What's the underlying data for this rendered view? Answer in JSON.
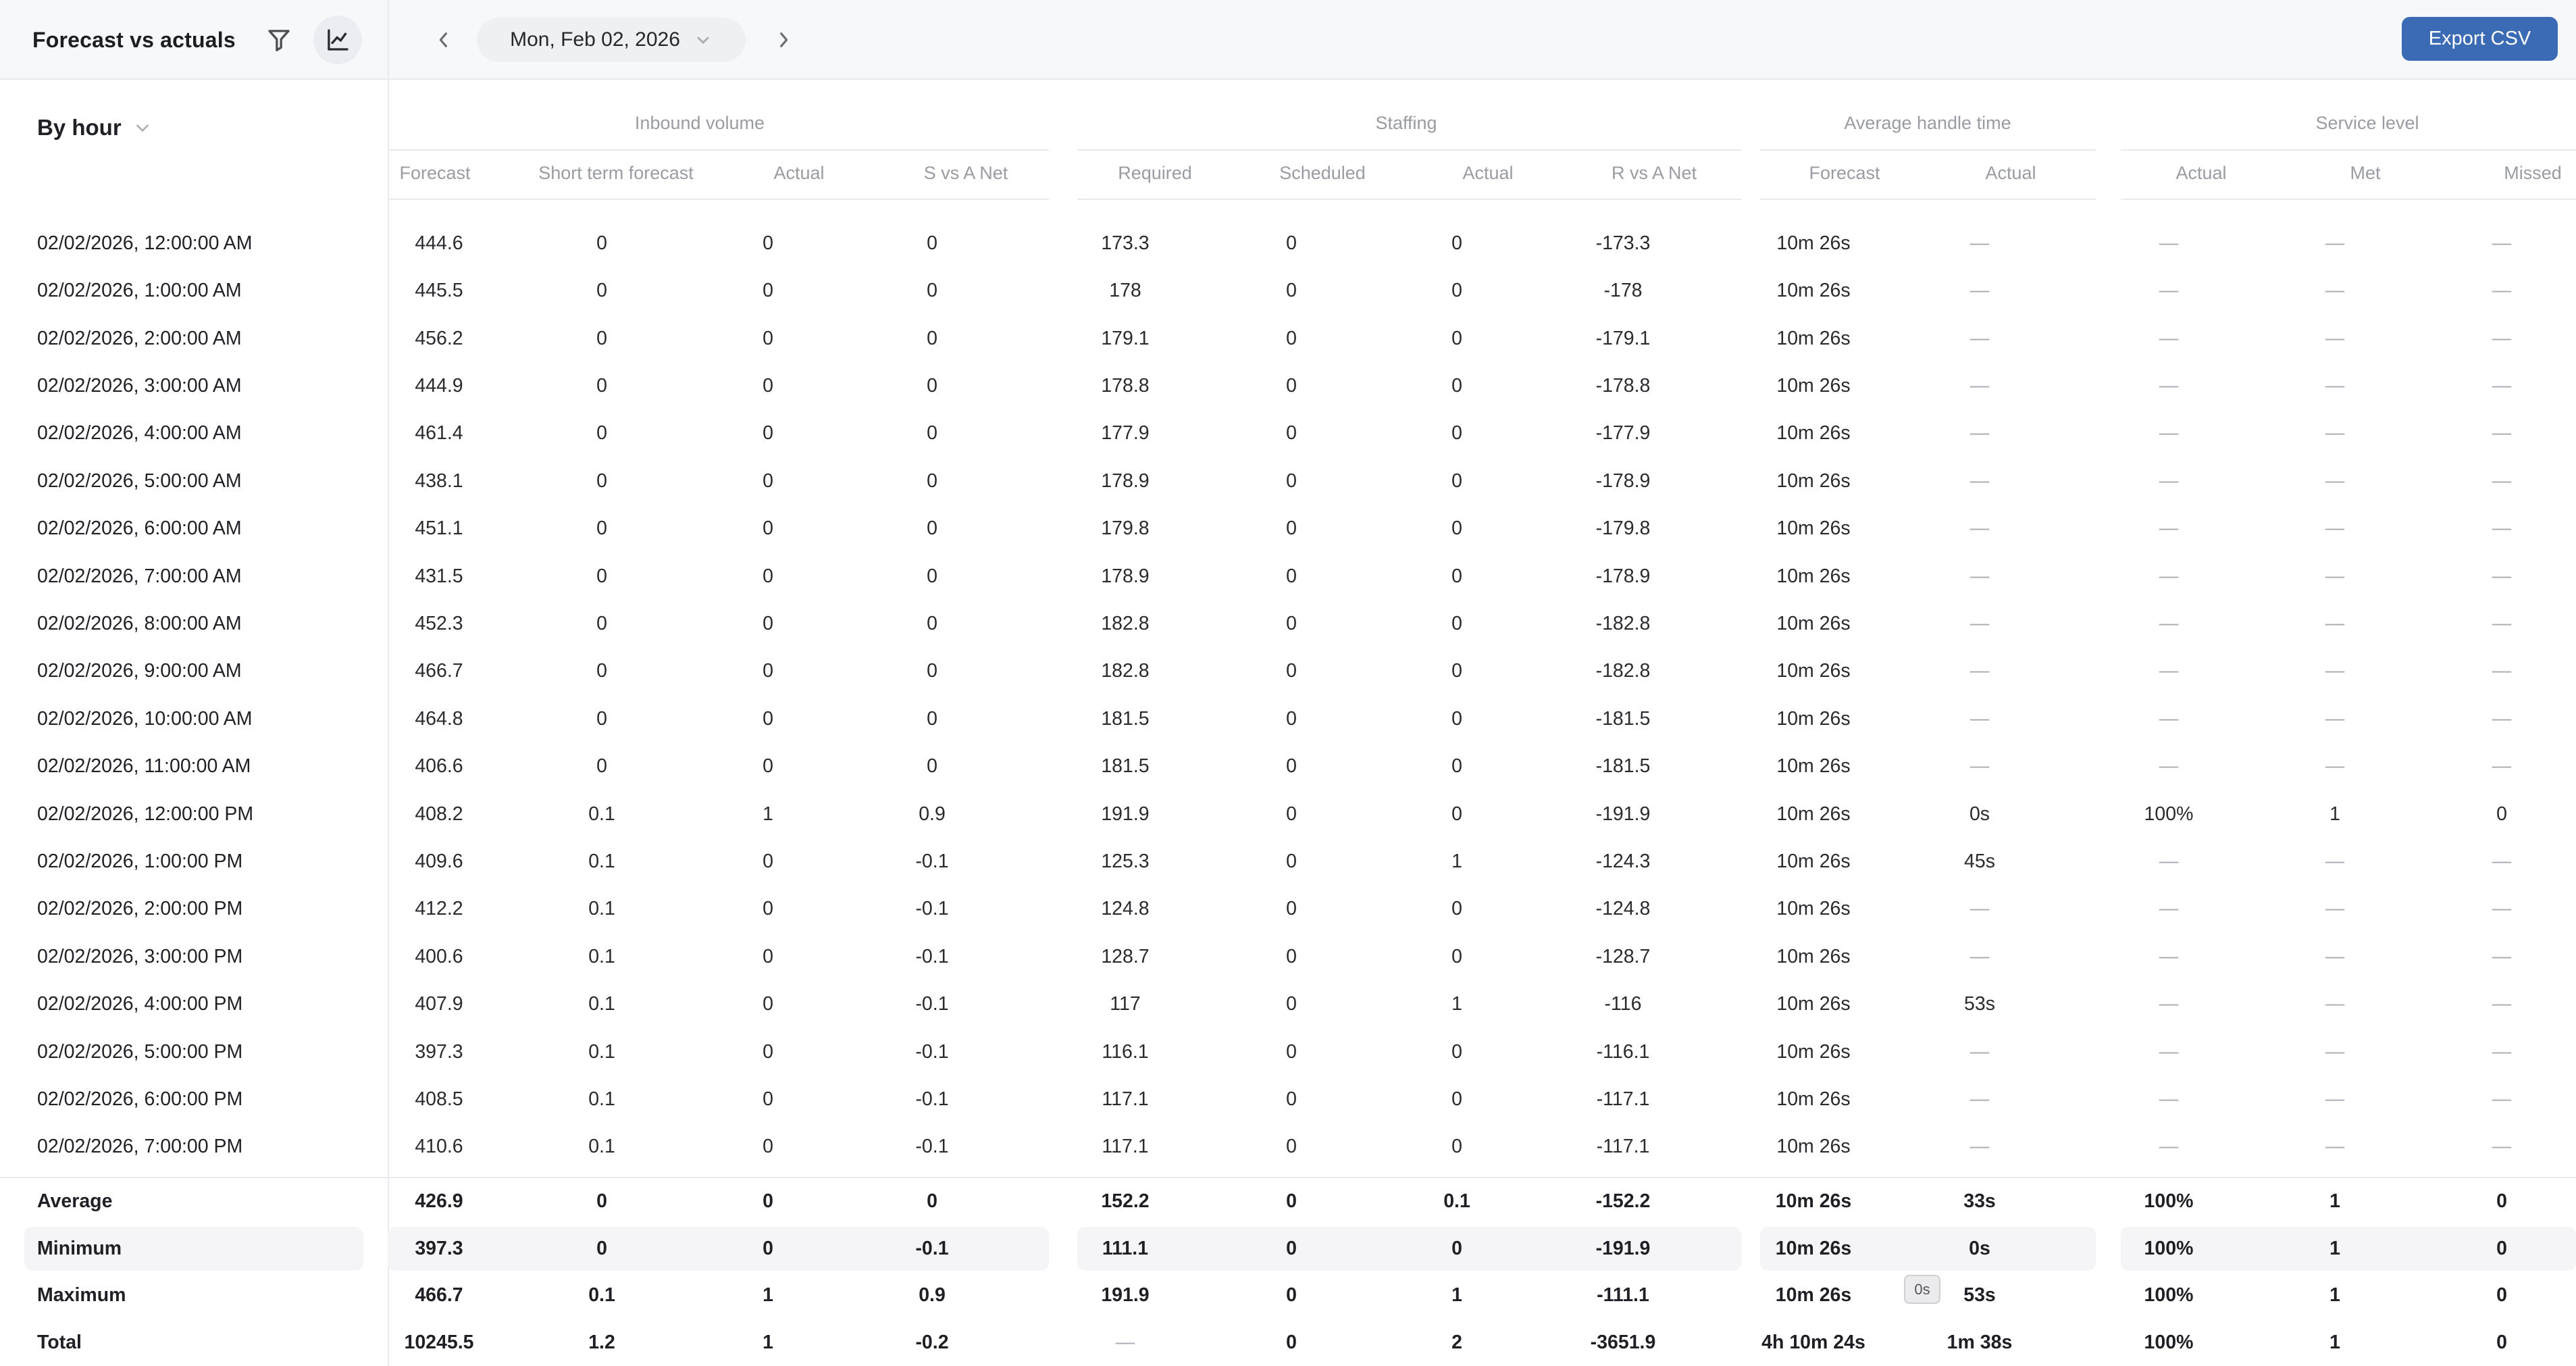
{
  "topbar": {
    "title": "Forecast vs actuals",
    "date_label": "Mon, Feb 02, 2026",
    "export_label": "Export CSV"
  },
  "controls": {
    "group_by_label": "By hour"
  },
  "icons": {
    "filter": "funnel-icon",
    "chart_toggle": "line-chart-icon",
    "prev": "chevron-left-icon",
    "next": "chevron-right-icon",
    "date_caret": "chevron-down-icon",
    "group_by_caret": "chevron-down-icon"
  },
  "colors": {
    "accent_blue": "#3a6bb4",
    "topbar_bg": "#f7f8fa",
    "border": "#e9eaef",
    "muted_header": "#9a9ca3",
    "row_highlight": "#f5f5f7",
    "dash": "#a9abb1"
  },
  "table": {
    "groups": [
      {
        "label": "Inbound volume",
        "sub": [
          "Forecast",
          "Short term forecast",
          "Actual",
          "S vs A Net"
        ]
      },
      {
        "label": "Staffing",
        "sub": [
          "Required",
          "Scheduled",
          "Actual",
          "R vs A Net"
        ]
      },
      {
        "label": "Average handle time",
        "sub": [
          "Forecast",
          "Actual"
        ]
      },
      {
        "label": "Service level",
        "sub": [
          "Actual",
          "Met",
          "Missed"
        ]
      }
    ],
    "rows": [
      {
        "time": "02/02/2026, 12:00:00 AM",
        "values": [
          "444.6",
          "0",
          "0",
          "0",
          "173.3",
          "0",
          "0",
          "-173.3",
          "10m 26s",
          "—",
          "—",
          "—",
          "—"
        ]
      },
      {
        "time": "02/02/2026, 1:00:00 AM",
        "values": [
          "445.5",
          "0",
          "0",
          "0",
          "178",
          "0",
          "0",
          "-178",
          "10m 26s",
          "—",
          "—",
          "—",
          "—"
        ]
      },
      {
        "time": "02/02/2026, 2:00:00 AM",
        "values": [
          "456.2",
          "0",
          "0",
          "0",
          "179.1",
          "0",
          "0",
          "-179.1",
          "10m 26s",
          "—",
          "—",
          "—",
          "—"
        ]
      },
      {
        "time": "02/02/2026, 3:00:00 AM",
        "values": [
          "444.9",
          "0",
          "0",
          "0",
          "178.8",
          "0",
          "0",
          "-178.8",
          "10m 26s",
          "—",
          "—",
          "—",
          "—"
        ]
      },
      {
        "time": "02/02/2026, 4:00:00 AM",
        "values": [
          "461.4",
          "0",
          "0",
          "0",
          "177.9",
          "0",
          "0",
          "-177.9",
          "10m 26s",
          "—",
          "—",
          "—",
          "—"
        ]
      },
      {
        "time": "02/02/2026, 5:00:00 AM",
        "values": [
          "438.1",
          "0",
          "0",
          "0",
          "178.9",
          "0",
          "0",
          "-178.9",
          "10m 26s",
          "—",
          "—",
          "—",
          "—"
        ]
      },
      {
        "time": "02/02/2026, 6:00:00 AM",
        "values": [
          "451.1",
          "0",
          "0",
          "0",
          "179.8",
          "0",
          "0",
          "-179.8",
          "10m 26s",
          "—",
          "—",
          "—",
          "—"
        ]
      },
      {
        "time": "02/02/2026, 7:00:00 AM",
        "values": [
          "431.5",
          "0",
          "0",
          "0",
          "178.9",
          "0",
          "0",
          "-178.9",
          "10m 26s",
          "—",
          "—",
          "—",
          "—"
        ]
      },
      {
        "time": "02/02/2026, 8:00:00 AM",
        "values": [
          "452.3",
          "0",
          "0",
          "0",
          "182.8",
          "0",
          "0",
          "-182.8",
          "10m 26s",
          "—",
          "—",
          "—",
          "—"
        ]
      },
      {
        "time": "02/02/2026, 9:00:00 AM",
        "values": [
          "466.7",
          "0",
          "0",
          "0",
          "182.8",
          "0",
          "0",
          "-182.8",
          "10m 26s",
          "—",
          "—",
          "—",
          "—"
        ]
      },
      {
        "time": "02/02/2026, 10:00:00 AM",
        "values": [
          "464.8",
          "0",
          "0",
          "0",
          "181.5",
          "0",
          "0",
          "-181.5",
          "10m 26s",
          "—",
          "—",
          "—",
          "—"
        ]
      },
      {
        "time": "02/02/2026, 11:00:00 AM",
        "values": [
          "406.6",
          "0",
          "0",
          "0",
          "181.5",
          "0",
          "0",
          "-181.5",
          "10m 26s",
          "—",
          "—",
          "—",
          "—"
        ]
      },
      {
        "time": "02/02/2026, 12:00:00 PM",
        "values": [
          "408.2",
          "0.1",
          "1",
          "0.9",
          "191.9",
          "0",
          "0",
          "-191.9",
          "10m 26s",
          "0s",
          "100%",
          "1",
          "0"
        ]
      },
      {
        "time": "02/02/2026, 1:00:00 PM",
        "values": [
          "409.6",
          "0.1",
          "0",
          "-0.1",
          "125.3",
          "0",
          "1",
          "-124.3",
          "10m 26s",
          "45s",
          "—",
          "—",
          "—"
        ]
      },
      {
        "time": "02/02/2026, 2:00:00 PM",
        "values": [
          "412.2",
          "0.1",
          "0",
          "-0.1",
          "124.8",
          "0",
          "0",
          "-124.8",
          "10m 26s",
          "—",
          "—",
          "—",
          "—"
        ]
      },
      {
        "time": "02/02/2026, 3:00:00 PM",
        "values": [
          "400.6",
          "0.1",
          "0",
          "-0.1",
          "128.7",
          "0",
          "0",
          "-128.7",
          "10m 26s",
          "—",
          "—",
          "—",
          "—"
        ]
      },
      {
        "time": "02/02/2026, 4:00:00 PM",
        "values": [
          "407.9",
          "0.1",
          "0",
          "-0.1",
          "117",
          "0",
          "1",
          "-116",
          "10m 26s",
          "53s",
          "—",
          "—",
          "—"
        ]
      },
      {
        "time": "02/02/2026, 5:00:00 PM",
        "values": [
          "397.3",
          "0.1",
          "0",
          "-0.1",
          "116.1",
          "0",
          "0",
          "-116.1",
          "10m 26s",
          "—",
          "—",
          "—",
          "—"
        ]
      },
      {
        "time": "02/02/2026, 6:00:00 PM",
        "values": [
          "408.5",
          "0.1",
          "0",
          "-0.1",
          "117.1",
          "0",
          "0",
          "-117.1",
          "10m 26s",
          "—",
          "—",
          "—",
          "—"
        ]
      },
      {
        "time": "02/02/2026, 7:00:00 PM",
        "values": [
          "410.6",
          "0.1",
          "0",
          "-0.1",
          "117.1",
          "0",
          "0",
          "-117.1",
          "10m 26s",
          "—",
          "—",
          "—",
          "—"
        ]
      }
    ],
    "summary": [
      {
        "label": "Average",
        "highlight": false,
        "values": [
          "426.9",
          "0",
          "0",
          "0",
          "152.2",
          "0",
          "0.1",
          "-152.2",
          "10m 26s",
          "33s",
          "100%",
          "1",
          "0"
        ]
      },
      {
        "label": "Minimum",
        "highlight": true,
        "values": [
          "397.3",
          "0",
          "0",
          "-0.1",
          "111.1",
          "0",
          "0",
          "-191.9",
          "10m 26s",
          "0s",
          "100%",
          "1",
          "0"
        ]
      },
      {
        "label": "Maximum",
        "highlight": false,
        "values": [
          "466.7",
          "0.1",
          "1",
          "0.9",
          "191.9",
          "0",
          "1",
          "-111.1",
          "10m 26s",
          "53s",
          "100%",
          "1",
          "0"
        ]
      },
      {
        "label": "Total",
        "highlight": false,
        "values": [
          "10245.5",
          "1.2",
          "1",
          "-0.2",
          "—",
          "0",
          "2",
          "-3651.9",
          "4h 10m 24s",
          "1m 38s",
          "100%",
          "1",
          "0"
        ]
      }
    ],
    "floating_badge": "0s"
  }
}
